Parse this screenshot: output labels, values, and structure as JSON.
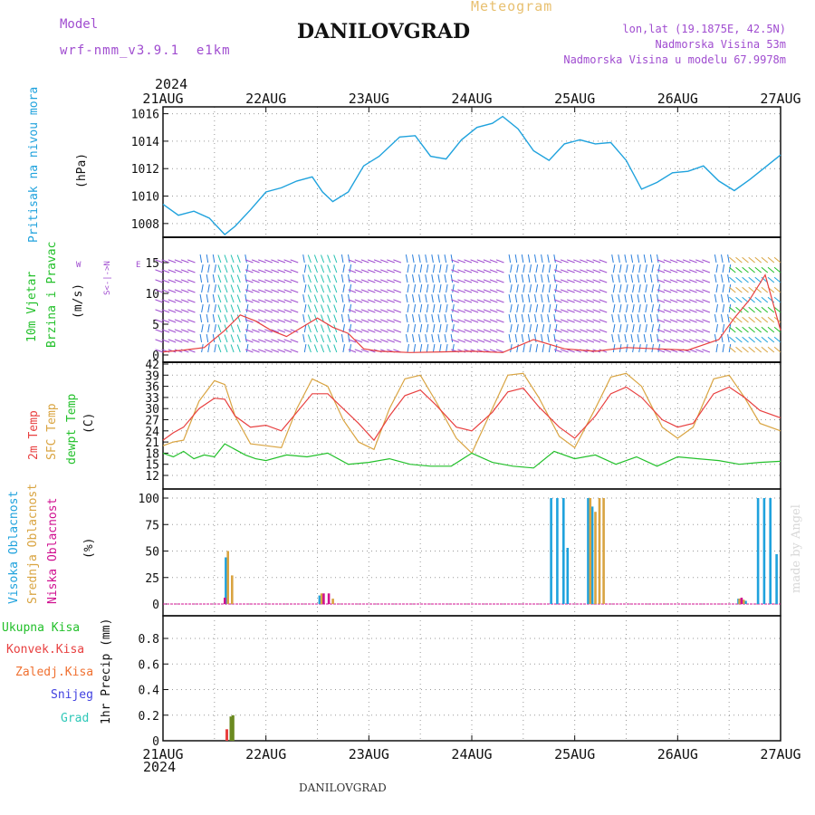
{
  "header": {
    "title": "DANILOVGRAD",
    "subtitle": "Meteogram",
    "model_label": "Model",
    "model_value": "wrf-nmm_v3.9.1  e1km",
    "lonlat": "lon,lat (19.1875E, 42.5N)",
    "elevation": "Nadmorska Visina 53m",
    "model_elevation": "Nadmorska Visina u modelu 67.9978m",
    "year": "2024",
    "footer_title": "DANILOVGRAD",
    "credit": "made by Angel"
  },
  "time_axis": {
    "start_day": 21,
    "end_day": 27,
    "tick_labels": [
      "21AUG",
      "22AUG",
      "23AUG",
      "24AUG",
      "25AUG",
      "26AUG",
      "27AUG"
    ]
  },
  "colors": {
    "pressure": "#1fa2dd",
    "wind_label": "#22c02a",
    "temp2m": "#e84040",
    "sfc_temp": "#d9a441",
    "dewpt": "#22c02a",
    "cloud_high": "#1fa2dd",
    "cloud_mid": "#d9a441",
    "cloud_low": "#d01090",
    "precip_total": "#22c02a",
    "precip_conv": "#e84040",
    "precip_frozen": "#f07030",
    "precip_snow": "#4040e0",
    "precip_grad": "#2ec8b8",
    "wind_speed": "#e84040",
    "purple": "#a04dd0"
  },
  "panels": {
    "pressure": {
      "label": "Pritisak na nivou mora",
      "unit": "(hPa)"
    },
    "wind": {
      "label_line1": "10m Vjetar",
      "label_line2": "Brzina i Pravac",
      "unit": "(m/s)",
      "compass_w": "W",
      "compass_e": "E",
      "compass_ns": "S<-|->N"
    },
    "temp": {
      "label_t2m": "2m Temp",
      "label_sfc": "SFC Temp",
      "label_dew": "dewpt Temp",
      "unit": "(C)"
    },
    "cloud": {
      "label_high": "Visoka Oblacnost",
      "label_mid": "Srednja Oblacnost",
      "label_low": "Niska Oblacnost",
      "unit": "(%)"
    },
    "precip": {
      "legend": [
        "Ukupna Kisa",
        "Konvek.Kisa",
        "Zaledj.Kisa",
        "Snijeg",
        "Grad"
      ],
      "unit": "1hr Precip (mm)"
    }
  },
  "chart_data": [
    {
      "type": "line",
      "name": "pressure",
      "ylabel": "(hPa)",
      "ylim": [
        1007,
        1016.5
      ],
      "yticks": [
        1008,
        1010,
        1012,
        1014,
        1016
      ],
      "x": [
        21.0,
        21.15,
        21.3,
        21.45,
        21.6,
        21.7,
        21.85,
        22.0,
        22.15,
        22.3,
        22.45,
        22.55,
        22.65,
        22.8,
        22.95,
        23.1,
        23.3,
        23.45,
        23.6,
        23.75,
        23.9,
        24.05,
        24.2,
        24.3,
        24.45,
        24.6,
        24.75,
        24.9,
        25.05,
        25.2,
        25.35,
        25.5,
        25.65,
        25.8,
        25.95,
        26.1,
        26.25,
        26.4,
        26.55,
        26.7,
        26.85,
        27.0
      ],
      "y": [
        1009.4,
        1008.6,
        1008.9,
        1008.4,
        1007.2,
        1007.8,
        1009.0,
        1010.3,
        1010.6,
        1011.1,
        1011.4,
        1010.3,
        1009.6,
        1010.3,
        1012.2,
        1012.9,
        1014.3,
        1014.4,
        1012.9,
        1012.7,
        1014.1,
        1015.0,
        1015.3,
        1015.8,
        1014.9,
        1013.3,
        1012.6,
        1013.8,
        1014.1,
        1013.8,
        1013.9,
        1012.6,
        1010.5,
        1011.0,
        1011.7,
        1011.8,
        1012.2,
        1011.1,
        1010.4,
        1011.2,
        1012.1,
        1013.0
      ]
    },
    {
      "type": "line",
      "name": "wind",
      "ylabel": "(m/s)",
      "ylim": [
        0,
        19
      ],
      "yticks": [
        0,
        5,
        10,
        15
      ],
      "series": [
        {
          "name": "wind speed",
          "x": [
            21.0,
            21.2,
            21.4,
            21.6,
            21.75,
            21.9,
            22.05,
            22.2,
            22.35,
            22.5,
            22.65,
            22.8,
            22.95,
            23.1,
            23.4,
            23.7,
            24.0,
            24.3,
            24.6,
            24.9,
            25.2,
            25.5,
            25.8,
            26.1,
            26.4,
            26.55,
            26.7,
            26.85,
            27.0
          ],
          "y": [
            0.5,
            0.8,
            1.2,
            4.0,
            6.5,
            5.5,
            4.0,
            3.0,
            4.5,
            6.0,
            4.5,
            3.5,
            1.0,
            0.6,
            0.4,
            0.5,
            0.6,
            0.4,
            2.5,
            1.0,
            0.6,
            1.2,
            1.0,
            0.8,
            2.5,
            6.0,
            9.0,
            13.0,
            4.0
          ]
        }
      ]
    },
    {
      "type": "line",
      "name": "temperature",
      "ylabel": "(C)",
      "ylim": [
        11,
        42
      ],
      "yticks": [
        12,
        15,
        18,
        21,
        24,
        27,
        30,
        33,
        36,
        39,
        42
      ],
      "series": [
        {
          "name": "2m Temp",
          "x": [
            21.0,
            21.1,
            21.2,
            21.35,
            21.5,
            21.6,
            21.7,
            21.85,
            22.0,
            22.15,
            22.3,
            22.45,
            22.6,
            22.75,
            22.9,
            23.05,
            23.2,
            23.35,
            23.5,
            23.65,
            23.85,
            24.0,
            24.2,
            24.35,
            24.5,
            24.65,
            24.85,
            25.0,
            25.2,
            25.35,
            25.5,
            25.65,
            25.85,
            26.0,
            26.15,
            26.35,
            26.5,
            26.65,
            26.8,
            27.0
          ],
          "y": [
            21.5,
            23.5,
            25.0,
            30.0,
            32.8,
            32.5,
            28.0,
            25.0,
            25.5,
            24.0,
            29.0,
            34.0,
            34.0,
            30.0,
            26.0,
            21.5,
            28.0,
            33.5,
            35.0,
            31.0,
            25.0,
            24.0,
            29.0,
            34.5,
            35.5,
            30.5,
            25.0,
            22.0,
            28.0,
            34.0,
            35.8,
            33.0,
            27.0,
            25.0,
            26.0,
            34.0,
            35.8,
            33.0,
            29.5,
            27.5
          ]
        },
        {
          "name": "SFC Temp",
          "x": [
            21.0,
            21.1,
            21.2,
            21.35,
            21.5,
            21.6,
            21.7,
            21.85,
            22.0,
            22.15,
            22.3,
            22.45,
            22.6,
            22.75,
            22.9,
            23.05,
            23.2,
            23.35,
            23.5,
            23.65,
            23.85,
            24.0,
            24.2,
            24.35,
            24.5,
            24.65,
            24.85,
            25.0,
            25.2,
            25.35,
            25.5,
            25.65,
            25.85,
            26.0,
            26.15,
            26.35,
            26.5,
            26.65,
            26.8,
            27.0
          ],
          "y": [
            20.0,
            21.0,
            21.5,
            32.0,
            37.5,
            36.5,
            28.0,
            20.5,
            20.0,
            19.5,
            30.0,
            38.0,
            36.0,
            27.0,
            21.0,
            19.0,
            30.0,
            38.0,
            39.0,
            32.0,
            22.0,
            18.0,
            30.0,
            39.0,
            39.5,
            33.0,
            22.5,
            19.5,
            30.0,
            38.5,
            39.5,
            36.0,
            25.0,
            22.0,
            25.0,
            38.0,
            39.0,
            33.0,
            26.0,
            24.0
          ]
        },
        {
          "name": "dewpt Temp",
          "x": [
            21.0,
            21.1,
            21.2,
            21.3,
            21.4,
            21.5,
            21.6,
            21.7,
            21.8,
            21.9,
            22.0,
            22.2,
            22.4,
            22.6,
            22.8,
            23.0,
            23.2,
            23.4,
            23.6,
            23.8,
            24.0,
            24.2,
            24.4,
            24.6,
            24.8,
            25.0,
            25.2,
            25.4,
            25.6,
            25.8,
            26.0,
            26.2,
            26.4,
            26.6,
            26.8,
            27.0
          ],
          "y": [
            18.0,
            17.0,
            18.5,
            16.5,
            17.5,
            17.0,
            20.5,
            19.0,
            17.5,
            16.5,
            16.0,
            17.5,
            17.0,
            18.0,
            15.0,
            15.5,
            16.5,
            15.0,
            14.5,
            14.5,
            18.0,
            15.5,
            14.5,
            14.0,
            18.5,
            16.5,
            17.5,
            15.0,
            17.0,
            14.5,
            17.0,
            16.5,
            16.0,
            15.0,
            15.5,
            15.8
          ]
        }
      ]
    },
    {
      "type": "bar",
      "name": "cloud_cover",
      "ylabel": "(%)",
      "ylim": [
        0,
        100
      ],
      "yticks": [
        0,
        25,
        50,
        75,
        100
      ],
      "series": [
        {
          "name": "Visoka Oblacnost",
          "x": [
            21.61,
            22.52,
            24.77,
            24.83,
            24.89,
            24.93,
            25.13,
            25.17,
            26.59,
            26.63,
            26.66,
            26.78,
            26.84,
            26.9,
            26.96
          ],
          "y": [
            44,
            8,
            100,
            100,
            100,
            53,
            100,
            92,
            5,
            4,
            3,
            100,
            100,
            100,
            47
          ]
        },
        {
          "name": "Srednja Oblacnost",
          "x": [
            21.63,
            21.67,
            22.54,
            22.65,
            25.15,
            25.2,
            25.24,
            25.28,
            26.6,
            26.64
          ],
          "y": [
            50,
            27,
            10,
            5,
            100,
            87,
            100,
            100,
            5,
            4
          ]
        },
        {
          "name": "Niska Oblacnost",
          "x": [
            21.6,
            22.56,
            22.61,
            26.62
          ],
          "y": [
            6,
            10,
            10,
            6
          ]
        }
      ]
    },
    {
      "type": "bar",
      "name": "precipitation",
      "ylabel": "1hr Precip (mm)",
      "ylim": [
        0,
        1.0
      ],
      "yticks": [
        0,
        0.2,
        0.4,
        0.6,
        0.8
      ],
      "series": [
        {
          "name": "Ukupna Kisa",
          "x": [
            21.66,
            21.68
          ],
          "y": [
            0.19,
            0.2
          ]
        },
        {
          "name": "Konvek.Kisa",
          "x": [
            21.62
          ],
          "y": [
            0.09
          ]
        }
      ]
    }
  ]
}
